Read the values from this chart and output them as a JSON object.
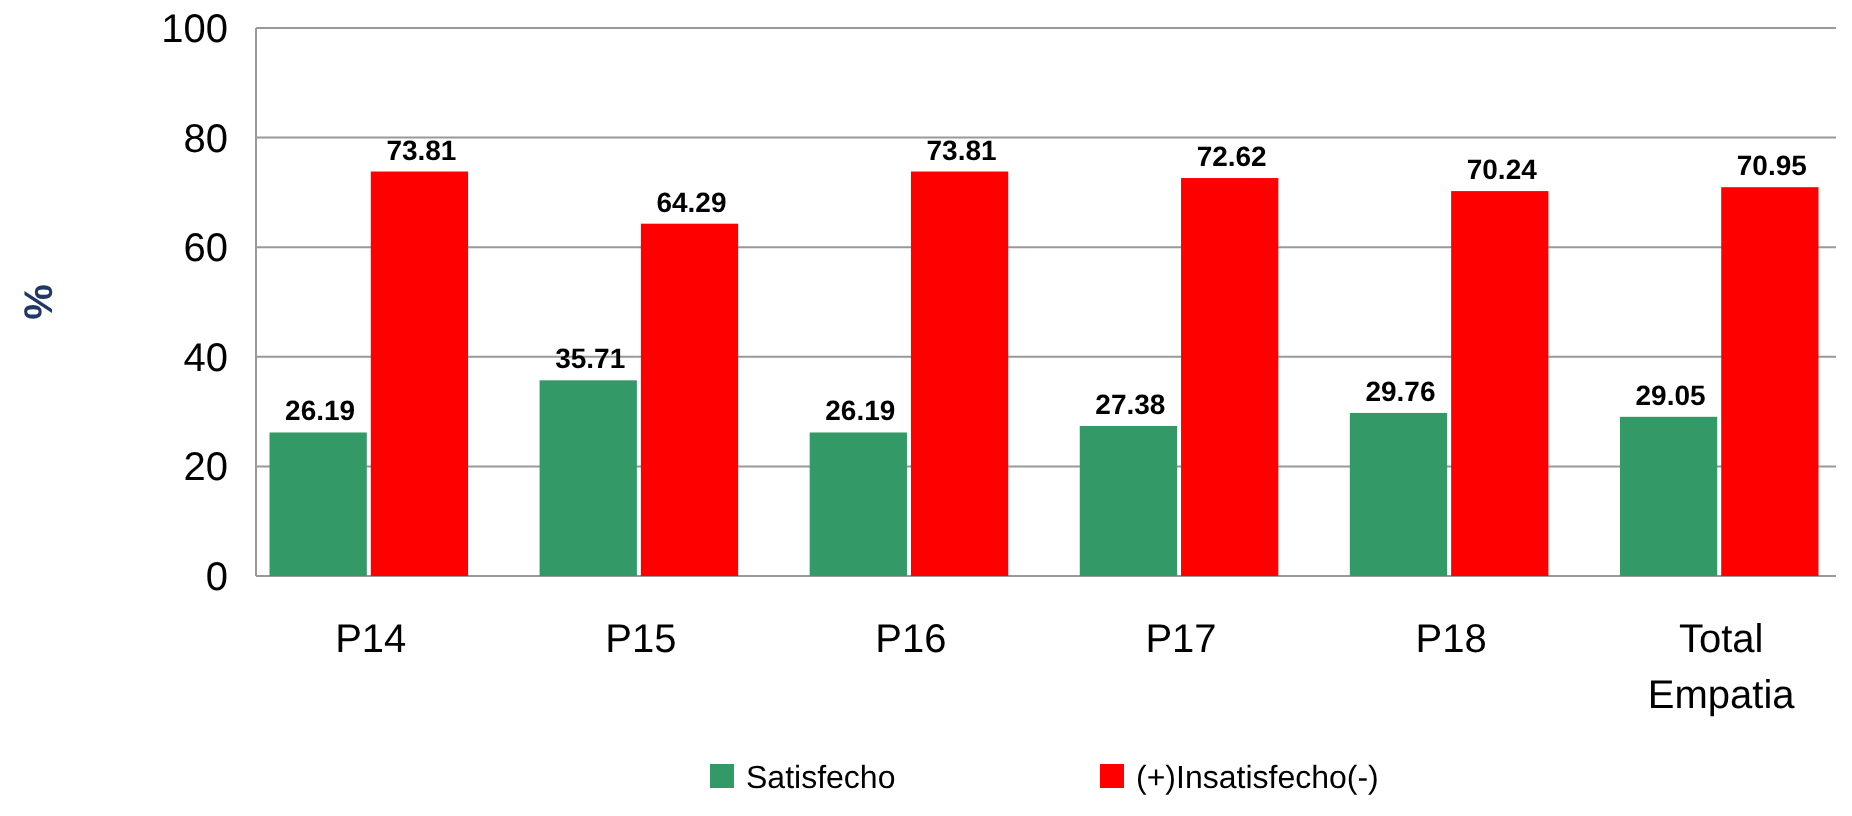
{
  "chart_data": {
    "type": "bar",
    "ylabel": "%",
    "categories": [
      "P14",
      "P15",
      "P16",
      "P17",
      "P18",
      "Total Empatia"
    ],
    "series": [
      {
        "name": "Satisfecho",
        "color": "#339966",
        "values": [
          26.19,
          35.71,
          26.19,
          27.38,
          29.76,
          29.05
        ]
      },
      {
        "name": "(+)Insatisfecho(-)",
        "color": "#ff0000",
        "values": [
          73.81,
          64.29,
          73.81,
          72.62,
          70.24,
          70.95
        ]
      }
    ],
    "ylim": [
      0,
      100
    ],
    "yticks": [
      0,
      20,
      40,
      60,
      80,
      100
    ],
    "grid": "y",
    "legend": "bottom",
    "data_labels": true
  }
}
